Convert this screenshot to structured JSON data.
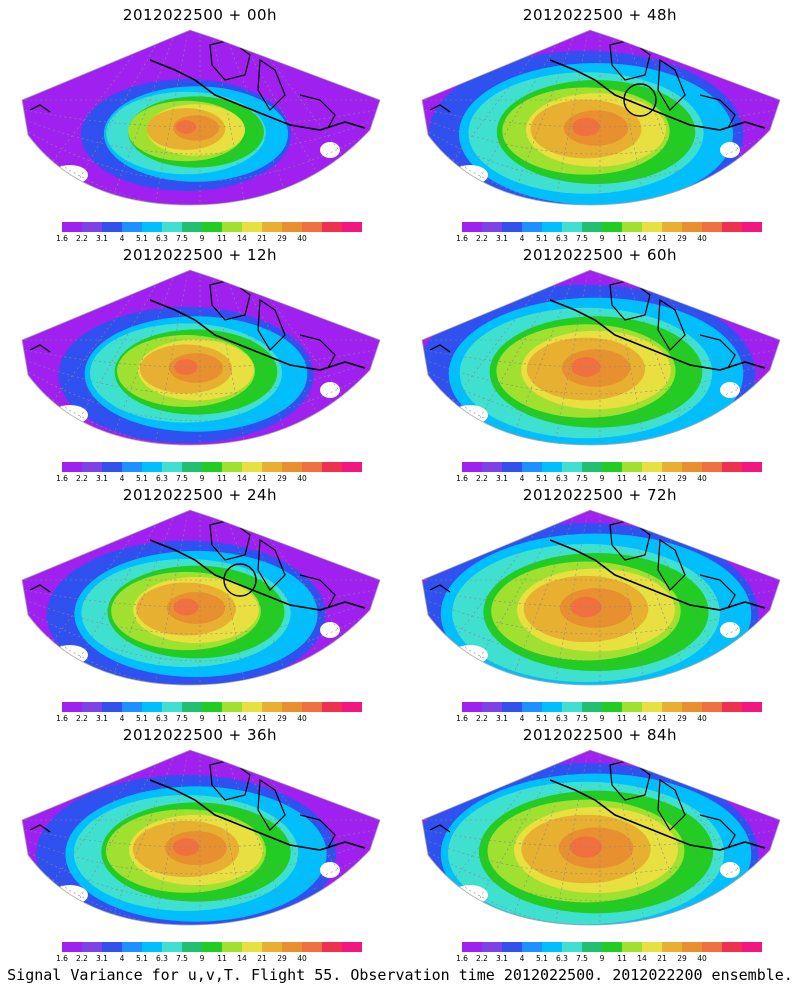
{
  "footer": "Signal Variance for u,v,T. Flight 55. Observation time 2012022500. 2012022200 ensemble.",
  "colorbar": {
    "labels": [
      "1.6",
      "2.2",
      "3.1",
      "4",
      "5.1",
      "6.3",
      "7.5",
      "9",
      "11",
      "14",
      "21",
      "29",
      "40"
    ],
    "colors": [
      "#a020f0",
      "#8040e8",
      "#3050f0",
      "#1e90ff",
      "#00bfff",
      "#40e0d0",
      "#20c070",
      "#22cc22",
      "#a0e030",
      "#e8e040",
      "#e8b030",
      "#e89030",
      "#f07040",
      "#f03050",
      "#f01880"
    ]
  },
  "panels": [
    {
      "title": "2012022500 + 00h",
      "intensity": 0.35,
      "circle": false
    },
    {
      "title": "2012022500 + 48h",
      "intensity": 0.7,
      "circle": true
    },
    {
      "title": "2012022500 + 12h",
      "intensity": 0.5,
      "circle": false
    },
    {
      "title": "2012022500 + 60h",
      "intensity": 0.78,
      "circle": false
    },
    {
      "title": "2012022500 + 24h",
      "intensity": 0.58,
      "circle": true
    },
    {
      "title": "2012022500 + 72h",
      "intensity": 0.85,
      "circle": false
    },
    {
      "title": "2012022500 + 36h",
      "intensity": 0.65,
      "circle": false
    },
    {
      "title": "2012022500 + 84h",
      "intensity": 0.9,
      "circle": false
    }
  ]
}
